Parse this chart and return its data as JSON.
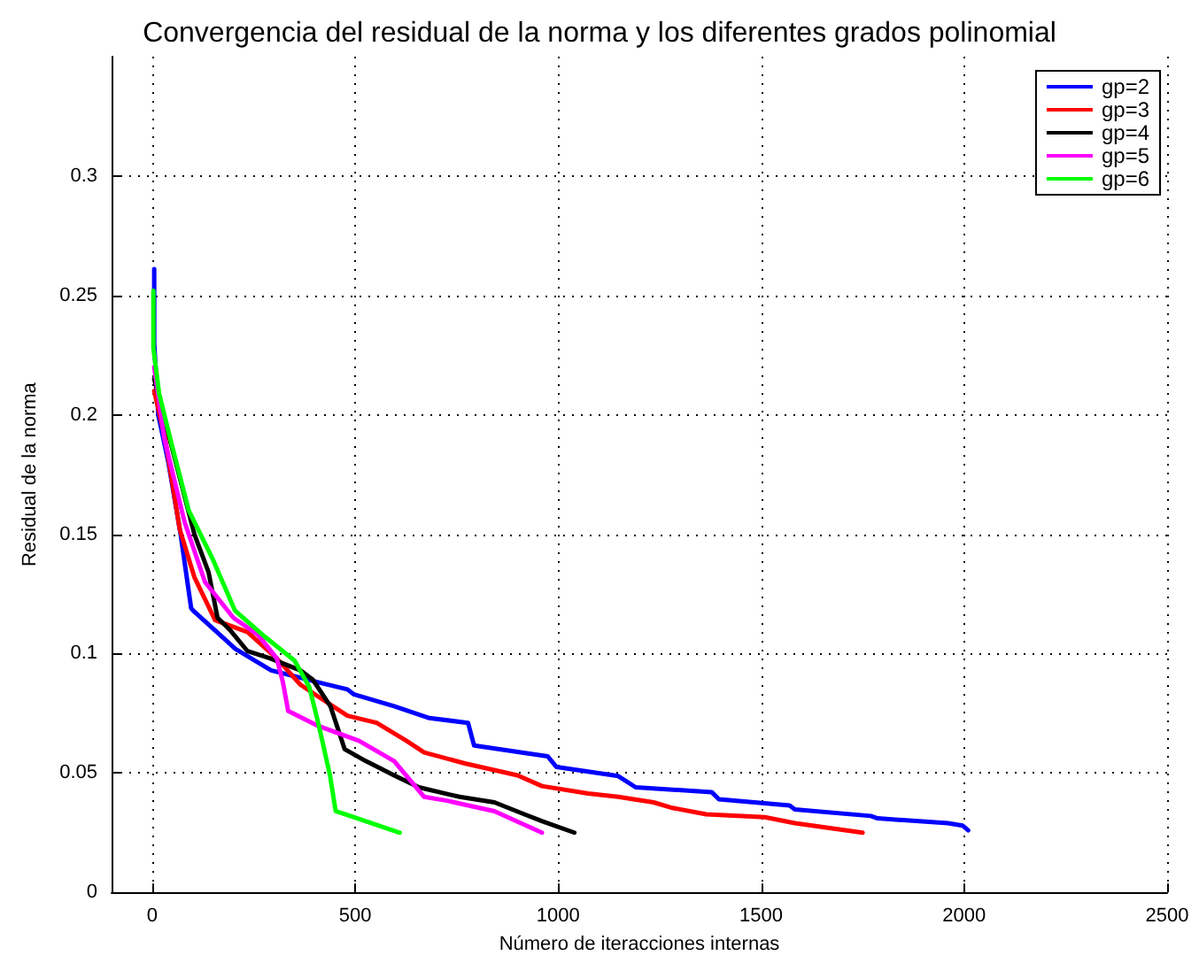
{
  "chart_data": {
    "type": "line",
    "title": "Convergencia del residual de la norma y los diferentes grados polinomial",
    "xlabel": "Número de iteracciones internas",
    "ylabel": "Residual de la norma",
    "xlim": [
      -100,
      2500
    ],
    "xticks": [
      0,
      500,
      1000,
      1500,
      2000,
      2500
    ],
    "ylim": [
      0,
      0.35
    ],
    "yticks": [
      0,
      0.05,
      0.1,
      0.15,
      0.2,
      0.25,
      0.3
    ],
    "grid": true,
    "legend": "top right",
    "marker": "none",
    "line_style": "solid",
    "series": [
      {
        "name": "gp=2",
        "color": "#0000ff",
        "x": [
          5,
          5,
          15,
          40,
          70,
          96,
          101,
          205,
          293,
          409,
          481,
          496,
          596,
          683,
          778,
          793,
          974,
          996,
          1148,
          1191,
          1378,
          1396,
          1570,
          1583,
          1770,
          1787,
          1960,
          1996,
          2010
        ],
        "values": [
          0.261,
          0.23,
          0.2,
          0.18,
          0.15,
          0.119,
          0.118,
          0.102,
          0.093,
          0.088,
          0.085,
          0.083,
          0.078,
          0.073,
          0.071,
          0.0615,
          0.057,
          0.0525,
          0.0487,
          0.044,
          0.042,
          0.039,
          0.0364,
          0.0347,
          0.032,
          0.031,
          0.029,
          0.028,
          0.026
        ]
      },
      {
        "name": "gp=3",
        "color": "#ff0000",
        "x": [
          5,
          32,
          68,
          104,
          155,
          235,
          307,
          365,
          409,
          481,
          553,
          626,
          670,
          770,
          900,
          960,
          1074,
          1148,
          1235,
          1278,
          1365,
          1509,
          1583,
          1750
        ],
        "values": [
          0.21,
          0.19,
          0.152,
          0.132,
          0.114,
          0.109,
          0.098,
          0.087,
          0.082,
          0.074,
          0.071,
          0.0635,
          0.0586,
          0.054,
          0.049,
          0.0445,
          0.0414,
          0.04,
          0.0377,
          0.0355,
          0.0327,
          0.0315,
          0.029,
          0.025
        ]
      },
      {
        "name": "gp=4",
        "color": "#000000",
        "x": [
          5,
          104,
          139,
          161,
          191,
          235,
          291,
          365,
          396,
          439,
          474,
          526,
          596,
          657,
          757,
          843,
          917,
          961,
          1040
        ],
        "values": [
          0.215,
          0.15,
          0.134,
          0.115,
          0.11,
          0.101,
          0.098,
          0.093,
          0.089,
          0.078,
          0.06,
          0.055,
          0.049,
          0.044,
          0.04,
          0.0377,
          0.0327,
          0.0298,
          0.025
        ]
      },
      {
        "name": "gp=5",
        "color": "#ff00ff",
        "x": [
          5,
          30,
          80,
          130,
          200,
          260,
          307,
          322,
          335,
          409,
          509,
          596,
          670,
          726,
          843,
          960
        ],
        "values": [
          0.22,
          0.19,
          0.155,
          0.13,
          0.115,
          0.108,
          0.098,
          0.088,
          0.076,
          0.0697,
          0.0635,
          0.055,
          0.04,
          0.0384,
          0.034,
          0.025
        ]
      },
      {
        "name": "gp=6",
        "color": "#00ff00",
        "x": [
          3,
          3,
          17,
          46,
          90,
          148,
          204,
          278,
          351,
          387,
          409,
          438,
          452,
          496,
          610
        ],
        "values": [
          0.252,
          0.228,
          0.209,
          0.189,
          0.16,
          0.14,
          0.118,
          0.107,
          0.097,
          0.086,
          0.071,
          0.049,
          0.034,
          0.0315,
          0.025
        ]
      }
    ]
  }
}
